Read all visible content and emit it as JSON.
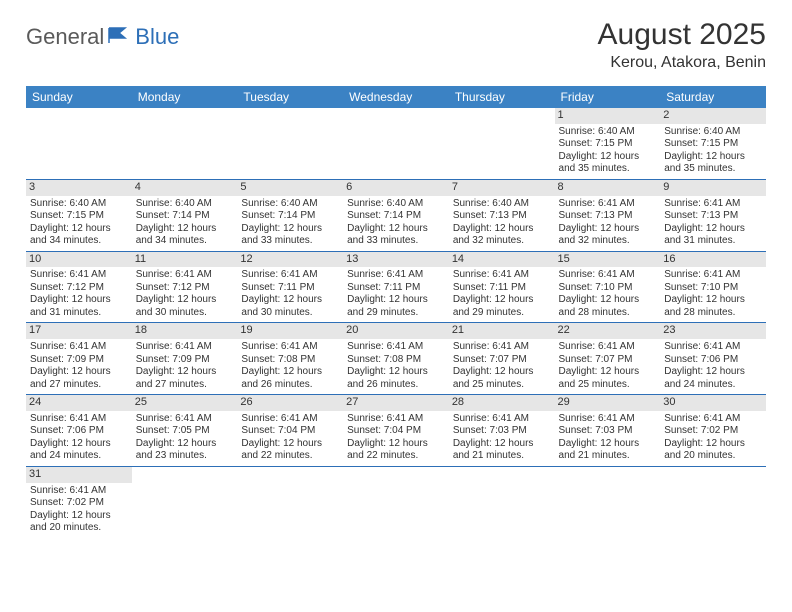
{
  "logo": {
    "text1": "General",
    "text2": "Blue"
  },
  "title": "August 2025",
  "location": "Kerou, Atakora, Benin",
  "colors": {
    "header_bg": "#3b82c4",
    "header_text": "#ffffff",
    "daynum_bg": "#e6e6e6",
    "rule": "#2d6fb7",
    "text": "#333333",
    "logo_gray": "#5a5a5a",
    "logo_blue": "#2d6fb7",
    "background": "#ffffff"
  },
  "day_headers": [
    "Sunday",
    "Monday",
    "Tuesday",
    "Wednesday",
    "Thursday",
    "Friday",
    "Saturday"
  ],
  "weeks": [
    [
      null,
      null,
      null,
      null,
      null,
      {
        "n": "1",
        "sr": "6:40 AM",
        "ss": "7:15 PM",
        "dl": "12 hours and 35 minutes."
      },
      {
        "n": "2",
        "sr": "6:40 AM",
        "ss": "7:15 PM",
        "dl": "12 hours and 35 minutes."
      }
    ],
    [
      {
        "n": "3",
        "sr": "6:40 AM",
        "ss": "7:15 PM",
        "dl": "12 hours and 34 minutes."
      },
      {
        "n": "4",
        "sr": "6:40 AM",
        "ss": "7:14 PM",
        "dl": "12 hours and 34 minutes."
      },
      {
        "n": "5",
        "sr": "6:40 AM",
        "ss": "7:14 PM",
        "dl": "12 hours and 33 minutes."
      },
      {
        "n": "6",
        "sr": "6:40 AM",
        "ss": "7:14 PM",
        "dl": "12 hours and 33 minutes."
      },
      {
        "n": "7",
        "sr": "6:40 AM",
        "ss": "7:13 PM",
        "dl": "12 hours and 32 minutes."
      },
      {
        "n": "8",
        "sr": "6:41 AM",
        "ss": "7:13 PM",
        "dl": "12 hours and 32 minutes."
      },
      {
        "n": "9",
        "sr": "6:41 AM",
        "ss": "7:13 PM",
        "dl": "12 hours and 31 minutes."
      }
    ],
    [
      {
        "n": "10",
        "sr": "6:41 AM",
        "ss": "7:12 PM",
        "dl": "12 hours and 31 minutes."
      },
      {
        "n": "11",
        "sr": "6:41 AM",
        "ss": "7:12 PM",
        "dl": "12 hours and 30 minutes."
      },
      {
        "n": "12",
        "sr": "6:41 AM",
        "ss": "7:11 PM",
        "dl": "12 hours and 30 minutes."
      },
      {
        "n": "13",
        "sr": "6:41 AM",
        "ss": "7:11 PM",
        "dl": "12 hours and 29 minutes."
      },
      {
        "n": "14",
        "sr": "6:41 AM",
        "ss": "7:11 PM",
        "dl": "12 hours and 29 minutes."
      },
      {
        "n": "15",
        "sr": "6:41 AM",
        "ss": "7:10 PM",
        "dl": "12 hours and 28 minutes."
      },
      {
        "n": "16",
        "sr": "6:41 AM",
        "ss": "7:10 PM",
        "dl": "12 hours and 28 minutes."
      }
    ],
    [
      {
        "n": "17",
        "sr": "6:41 AM",
        "ss": "7:09 PM",
        "dl": "12 hours and 27 minutes."
      },
      {
        "n": "18",
        "sr": "6:41 AM",
        "ss": "7:09 PM",
        "dl": "12 hours and 27 minutes."
      },
      {
        "n": "19",
        "sr": "6:41 AM",
        "ss": "7:08 PM",
        "dl": "12 hours and 26 minutes."
      },
      {
        "n": "20",
        "sr": "6:41 AM",
        "ss": "7:08 PM",
        "dl": "12 hours and 26 minutes."
      },
      {
        "n": "21",
        "sr": "6:41 AM",
        "ss": "7:07 PM",
        "dl": "12 hours and 25 minutes."
      },
      {
        "n": "22",
        "sr": "6:41 AM",
        "ss": "7:07 PM",
        "dl": "12 hours and 25 minutes."
      },
      {
        "n": "23",
        "sr": "6:41 AM",
        "ss": "7:06 PM",
        "dl": "12 hours and 24 minutes."
      }
    ],
    [
      {
        "n": "24",
        "sr": "6:41 AM",
        "ss": "7:06 PM",
        "dl": "12 hours and 24 minutes."
      },
      {
        "n": "25",
        "sr": "6:41 AM",
        "ss": "7:05 PM",
        "dl": "12 hours and 23 minutes."
      },
      {
        "n": "26",
        "sr": "6:41 AM",
        "ss": "7:04 PM",
        "dl": "12 hours and 22 minutes."
      },
      {
        "n": "27",
        "sr": "6:41 AM",
        "ss": "7:04 PM",
        "dl": "12 hours and 22 minutes."
      },
      {
        "n": "28",
        "sr": "6:41 AM",
        "ss": "7:03 PM",
        "dl": "12 hours and 21 minutes."
      },
      {
        "n": "29",
        "sr": "6:41 AM",
        "ss": "7:03 PM",
        "dl": "12 hours and 21 minutes."
      },
      {
        "n": "30",
        "sr": "6:41 AM",
        "ss": "7:02 PM",
        "dl": "12 hours and 20 minutes."
      }
    ],
    [
      {
        "n": "31",
        "sr": "6:41 AM",
        "ss": "7:02 PM",
        "dl": "12 hours and 20 minutes."
      },
      null,
      null,
      null,
      null,
      null,
      null
    ]
  ],
  "labels": {
    "sunrise": "Sunrise:",
    "sunset": "Sunset:",
    "daylight": "Daylight:"
  }
}
